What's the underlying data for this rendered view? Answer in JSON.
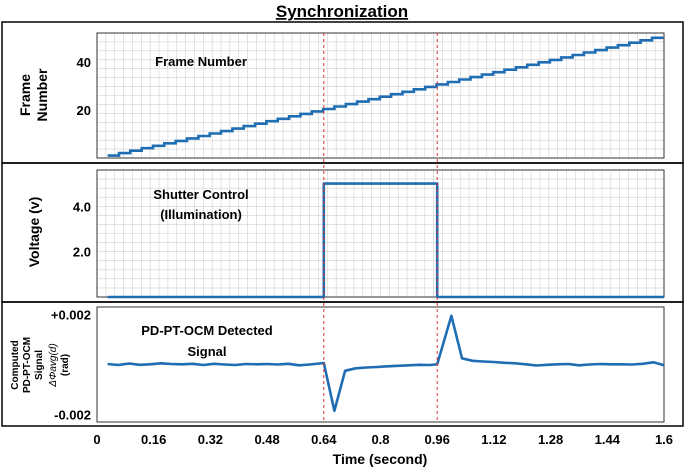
{
  "title": "Synchronization",
  "colors": {
    "series": "#1f6db3",
    "marker": "#e03030",
    "grid": "#d0d0d0",
    "frame": "#000000"
  },
  "chart_data": [
    {
      "type": "line",
      "panel": "frame",
      "ylabel_line1": "Frame",
      "ylabel_line2": "Number",
      "annotation": "Frame Number",
      "yticks": [
        "20",
        "40"
      ],
      "ytick_values": [
        20,
        40
      ],
      "ylim": [
        0,
        52
      ],
      "xlim": [
        0,
        1.6
      ],
      "grid": true,
      "step_width": 0.032,
      "x_start": 0.03,
      "x_end": 1.6,
      "y_start": 1,
      "y_end": 50
    },
    {
      "type": "line",
      "panel": "shutter",
      "ylabel": "Voltage (v)",
      "annotation_line1": "Shutter Control",
      "annotation_line2": "(Illumination)",
      "yticks": [
        "2.0",
        "4.0"
      ],
      "ytick_values": [
        2.0,
        4.0
      ],
      "ylim": [
        0,
        5.6
      ],
      "xlim": [
        0,
        1.6
      ],
      "grid": true,
      "x": [
        0.03,
        0.64,
        0.64,
        0.96,
        0.96,
        1.6
      ],
      "y": [
        0.0,
        0.0,
        5.0,
        5.0,
        0.0,
        0.0
      ]
    },
    {
      "type": "line",
      "panel": "signal",
      "ylabel_line1": "Computed",
      "ylabel_line2": "PD-PT-OCM",
      "ylabel_line3": "Signal",
      "ylabel_line4": "ΔΦavg(d)",
      "ylabel_line5": "(rad)",
      "annotation_line1": "PD-PT-OCM Detected",
      "annotation_line2": "Signal",
      "yticks": [
        "+0.002",
        "-0.002"
      ],
      "ytick_values": [
        0.002,
        -0.002
      ],
      "ylim": [
        -0.0023,
        0.0023
      ],
      "xlim": [
        0,
        1.6
      ],
      "grid": false,
      "x": [
        0.03,
        0.06,
        0.09,
        0.12,
        0.15,
        0.18,
        0.21,
        0.24,
        0.27,
        0.3,
        0.33,
        0.36,
        0.39,
        0.42,
        0.45,
        0.48,
        0.51,
        0.54,
        0.57,
        0.6,
        0.64,
        0.67,
        0.7,
        0.73,
        0.76,
        0.79,
        0.82,
        0.85,
        0.88,
        0.91,
        0.94,
        0.96,
        1.0,
        1.03,
        1.06,
        1.09,
        1.12,
        1.15,
        1.18,
        1.21,
        1.24,
        1.27,
        1.3,
        1.33,
        1.36,
        1.39,
        1.42,
        1.45,
        1.48,
        1.51,
        1.54,
        1.57,
        1.6
      ],
      "y": [
        2e-05,
        -2e-05,
        4e-05,
        -1e-05,
        1e-05,
        5e-05,
        2e-05,
        1e-05,
        3e-05,
        -2e-05,
        3e-05,
        0.0,
        -2e-05,
        2e-05,
        1e-05,
        2e-05,
        0.0,
        3e-05,
        -3e-05,
        0.0,
        6e-05,
        -0.00185,
        -0.00025,
        -0.00015,
        -0.00012,
        -0.0001,
        -7e-05,
        -5e-05,
        -3e-05,
        -1e-05,
        -2e-05,
        1e-05,
        0.00195,
        0.00025,
        0.00015,
        0.00012,
        0.0001,
        7e-05,
        5e-05,
        1e-05,
        -4e-05,
        -1e-05,
        1e-05,
        2e-05,
        -3e-05,
        0.0,
        2e-05,
        1e-05,
        1e-05,
        0.0,
        3e-05,
        9e-05,
        -3e-05
      ]
    }
  ],
  "x_axis": {
    "label": "Time (second)",
    "ticks": [
      "0",
      "0.16",
      "0.32",
      "0.48",
      "0.64",
      "0.8",
      "0.96",
      "1.12",
      "1.28",
      "1.44",
      "1.6"
    ],
    "tick_values": [
      0,
      0.16,
      0.32,
      0.48,
      0.64,
      0.8,
      0.96,
      1.12,
      1.28,
      1.44,
      1.6
    ],
    "range": [
      0,
      1.6
    ]
  },
  "markers": [
    0.64,
    0.96
  ]
}
